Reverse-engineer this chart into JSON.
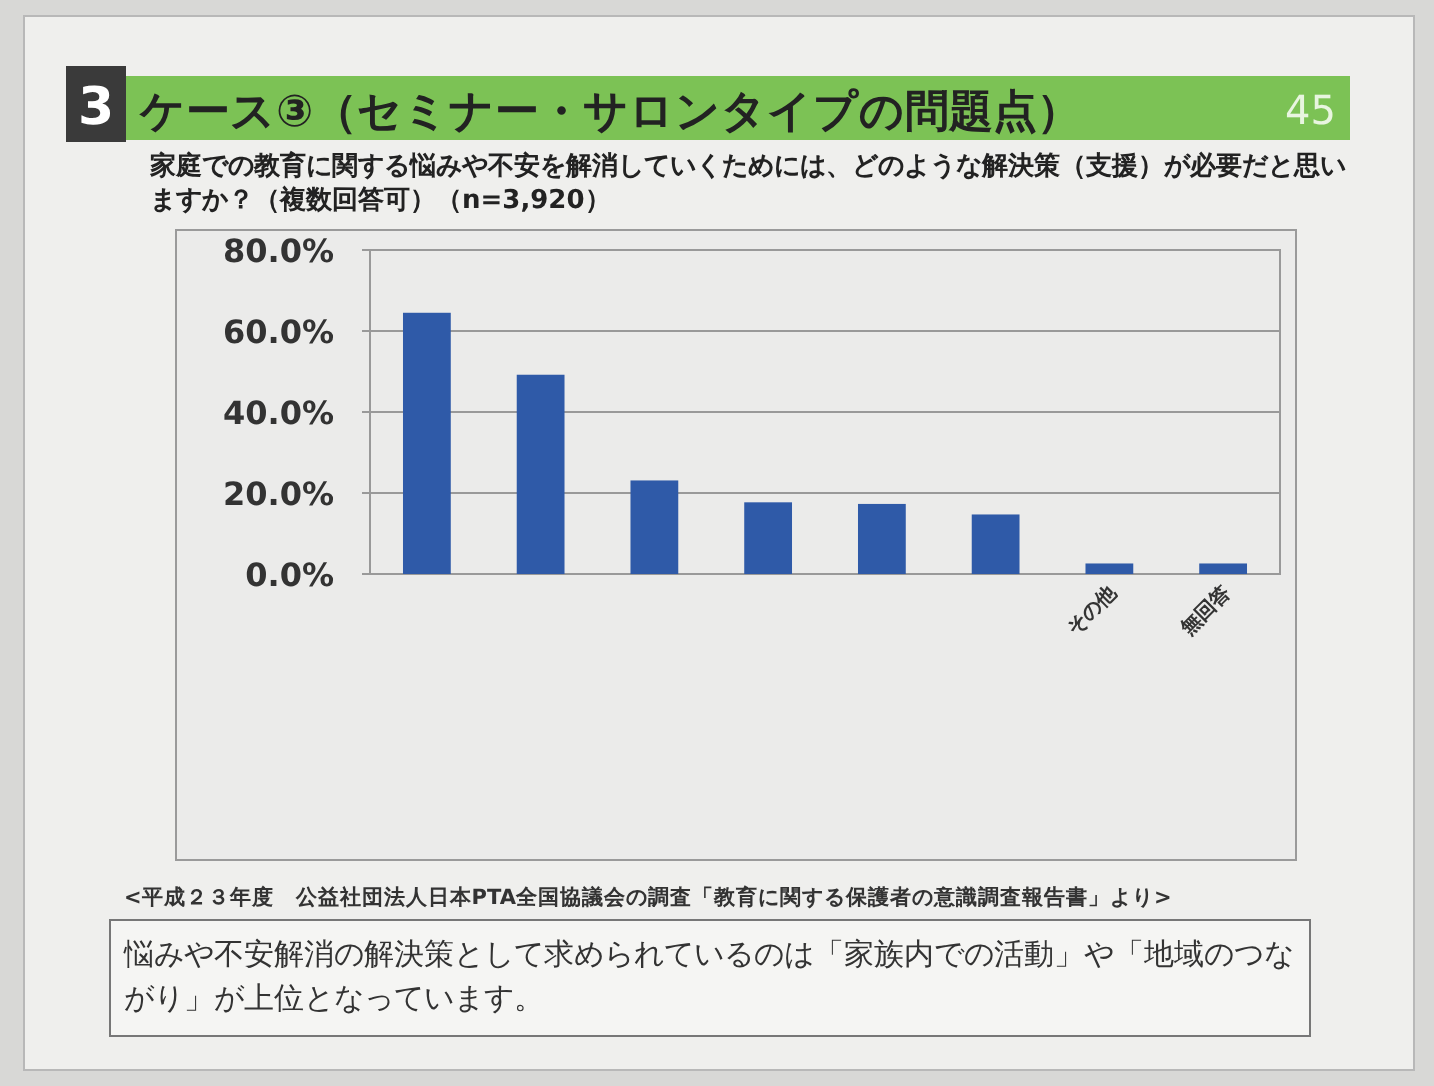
{
  "chart_data": {
    "type": "bar",
    "title": "ケース③（セミナー・サロンタイプの問題点）",
    "subtitle": "家庭での教育に関する悩みや不安を解消していくためには、どのような解決策（支援）が必要だと思いますか？（複数回答可）（n=3,920）",
    "categories": [
      null,
      null,
      null,
      null,
      null,
      null,
      "その他",
      "無回答"
    ],
    "values": [
      64.5,
      49.2,
      23.1,
      17.7,
      17.3,
      14.7,
      2.6,
      2.6
    ],
    "color": "#2f5aa8",
    "ylim": [
      0,
      80
    ],
    "yticks": [
      {
        "value": 0,
        "label": "0.0%"
      },
      {
        "value": 20,
        "label": "20.0%"
      },
      {
        "value": 40,
        "label": "40.0%"
      },
      {
        "value": 60,
        "label": "60.0%"
      },
      {
        "value": 80,
        "label": "80.0%"
      }
    ],
    "grid": "y",
    "annotations": [
      "3",
      "45",
      "<平成２３年度　公益社団法人日本PTA全国協議会の調査「教育に関する保護者の意識調査報告書」より>",
      "悩みや不安解消の解決策として求められているのは「家族内での活動」や「地域のつながり」が上位となっています。"
    ]
  }
}
